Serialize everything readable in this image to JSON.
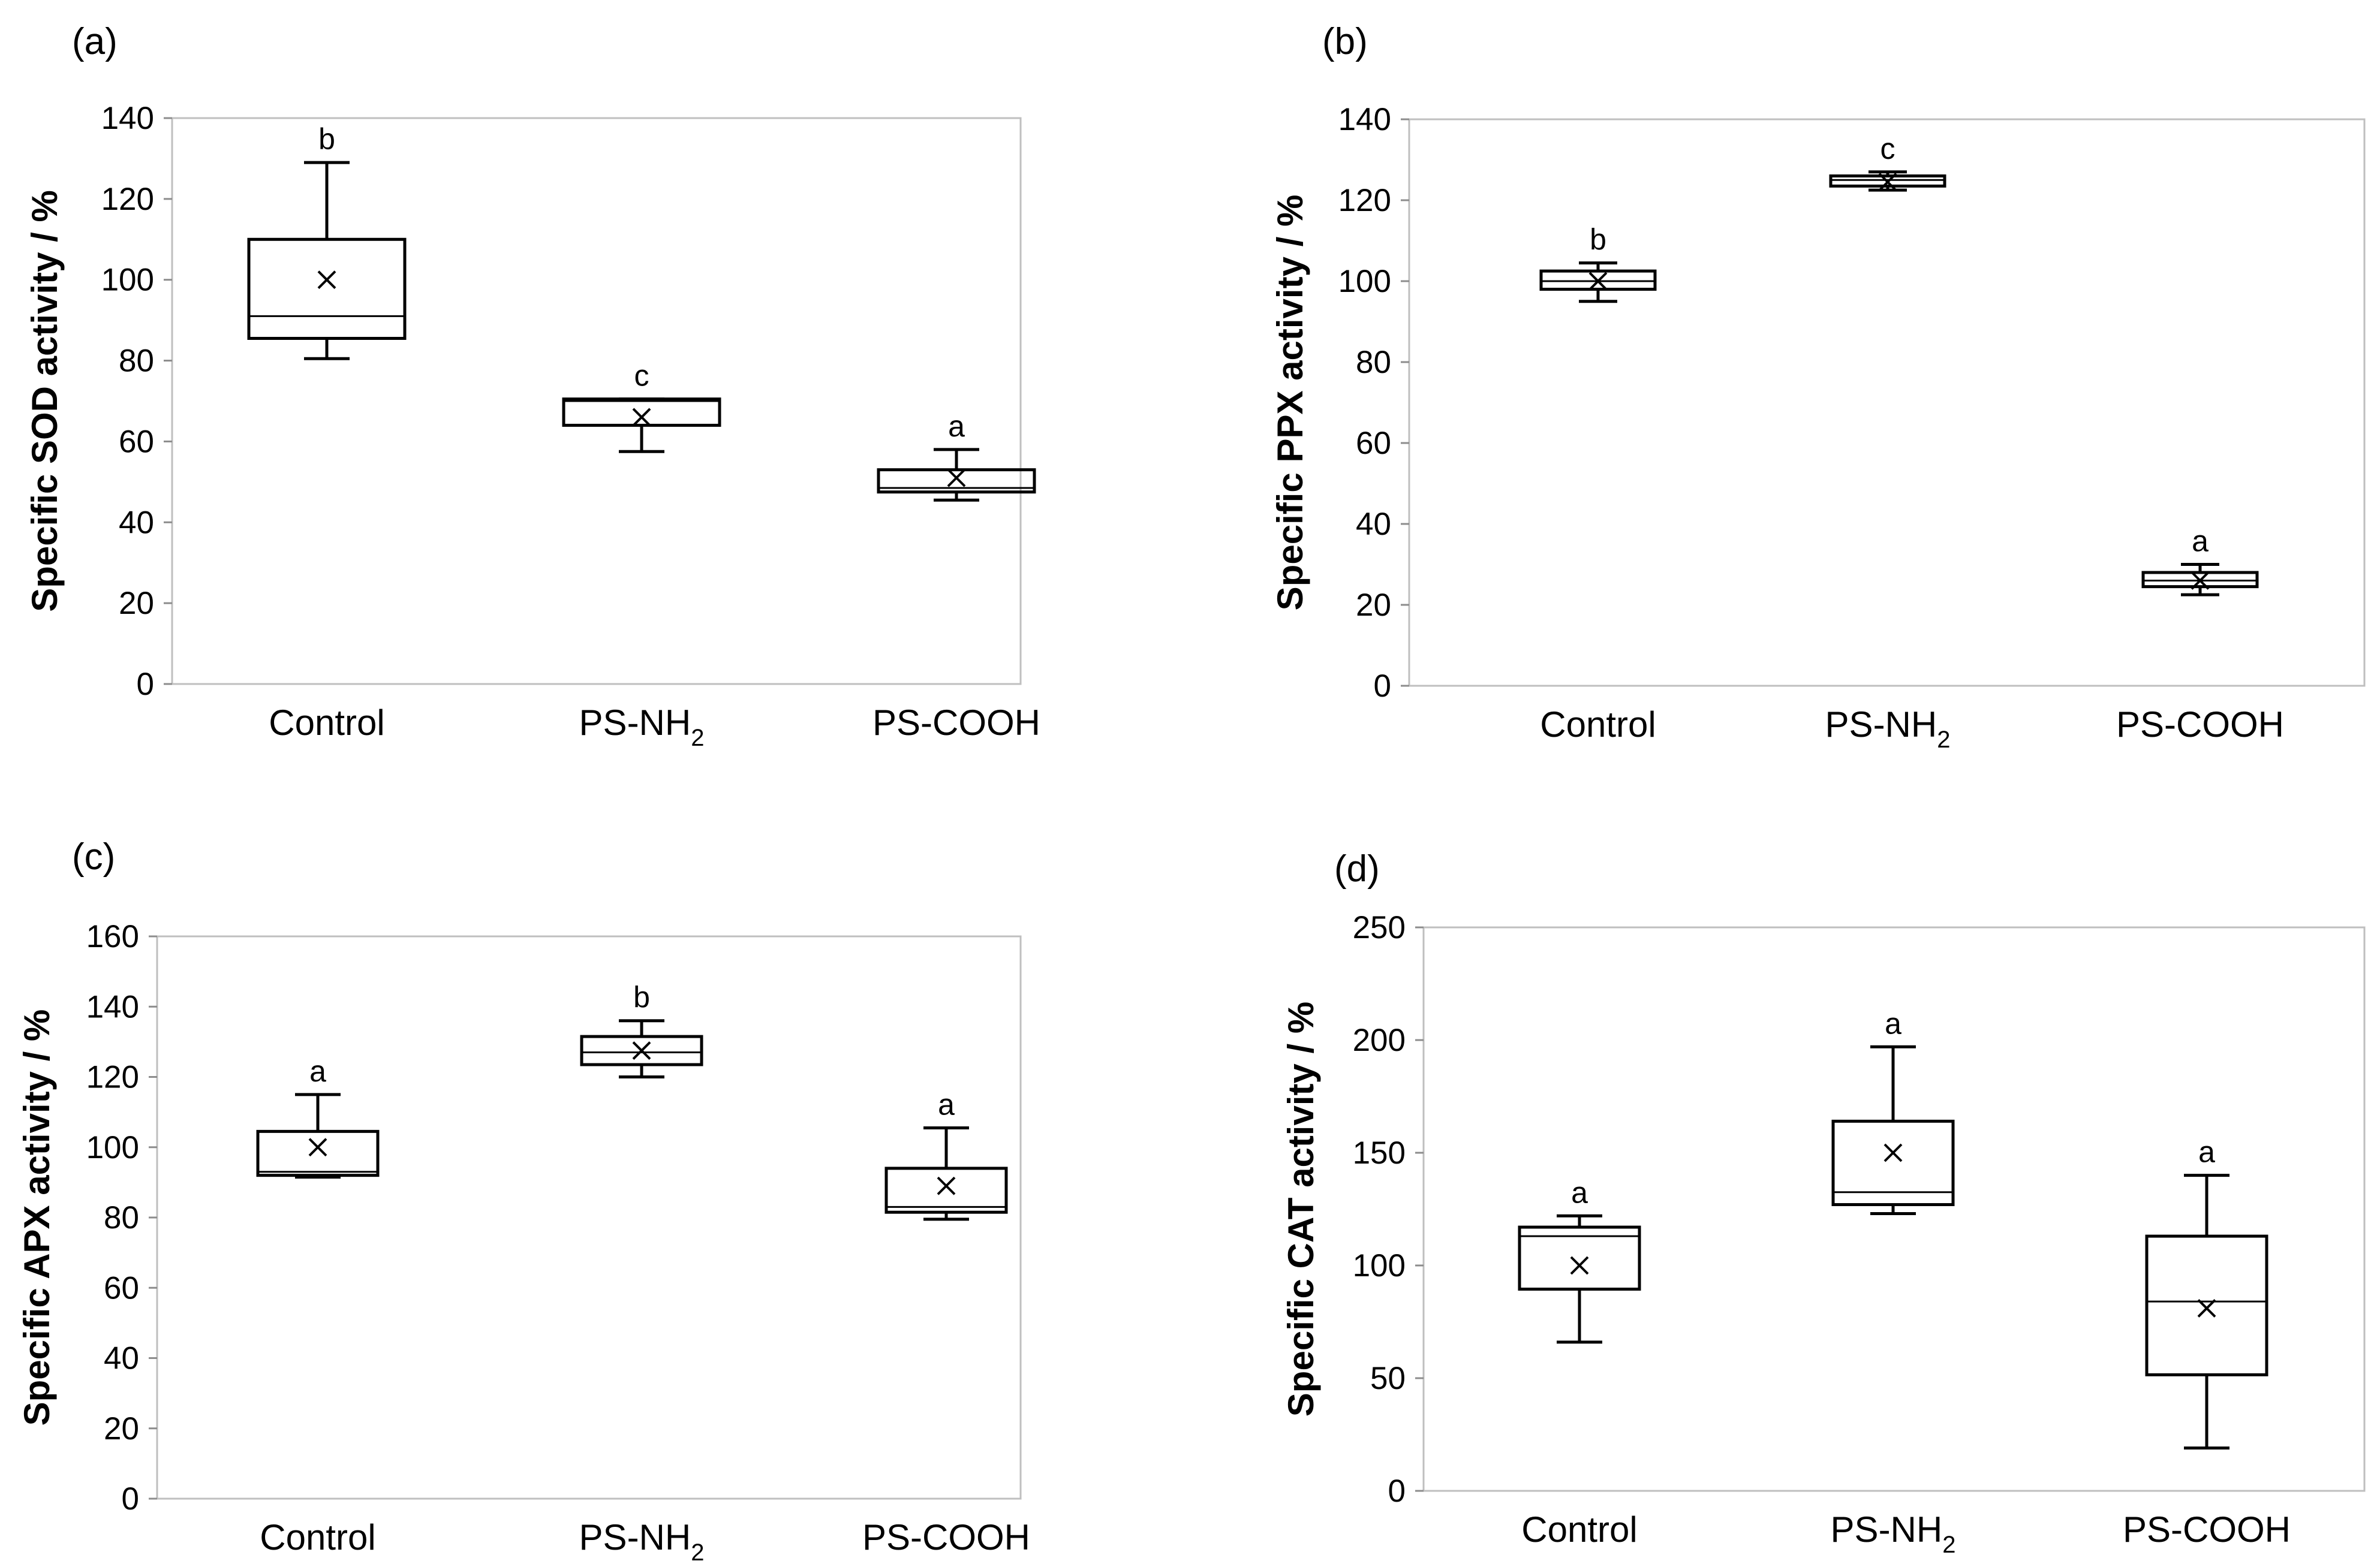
{
  "chart_data": [
    {
      "type": "box",
      "panel": "(a)",
      "ylabel": "Specific SOD activity / %",
      "ylim": [
        0,
        140
      ],
      "yticks": [
        0,
        20,
        40,
        60,
        80,
        100,
        120,
        140
      ],
      "categories": [
        {
          "main": "Control",
          "sub": ""
        },
        {
          "main": "PS-NH",
          "sub": "2"
        },
        {
          "main": "PS-COOH",
          "sub": ""
        }
      ],
      "boxes": [
        {
          "min": 80.5,
          "q1": 85.5,
          "median": 91,
          "q3": 110,
          "max": 129,
          "mean": 100,
          "letter": "b"
        },
        {
          "min": 57.5,
          "q1": 64,
          "median": 70,
          "q3": 70.5,
          "max": 70.5,
          "mean": 66,
          "letter": "c"
        },
        {
          "min": 45.5,
          "q1": 47.5,
          "median": 48.5,
          "q3": 53,
          "max": 58,
          "mean": 51,
          "letter": "a"
        }
      ]
    },
    {
      "type": "box",
      "panel": "(b)",
      "ylabel": "Specific PPX activity / %",
      "ylim": [
        0,
        140
      ],
      "yticks": [
        0,
        20,
        40,
        60,
        80,
        100,
        120,
        140
      ],
      "categories": [
        {
          "main": "Control",
          "sub": ""
        },
        {
          "main": "PS-NH",
          "sub": "2"
        },
        {
          "main": "PS-COOH",
          "sub": ""
        }
      ],
      "boxes": [
        {
          "min": 95,
          "q1": 98,
          "median": 100,
          "q3": 102.5,
          "max": 104.5,
          "mean": 100,
          "letter": "b"
        },
        {
          "min": 122.5,
          "q1": 123.5,
          "median": 125,
          "q3": 126,
          "max": 127,
          "mean": 124.5,
          "letter": "c"
        },
        {
          "min": 22.5,
          "q1": 24.5,
          "median": 26,
          "q3": 28,
          "max": 30,
          "mean": 26,
          "letter": "a"
        }
      ]
    },
    {
      "type": "box",
      "panel": "(c)",
      "ylabel": "Specific APX activity / %",
      "ylim": [
        0,
        160
      ],
      "yticks": [
        0,
        20,
        40,
        60,
        80,
        100,
        120,
        140,
        160
      ],
      "categories": [
        {
          "main": "Control",
          "sub": ""
        },
        {
          "main": "PS-NH",
          "sub": "2"
        },
        {
          "main": "PS-COOH",
          "sub": ""
        }
      ],
      "boxes": [
        {
          "min": 91.5,
          "q1": 92,
          "median": 93,
          "q3": 104.5,
          "max": 115,
          "mean": 100,
          "letter": "a"
        },
        {
          "min": 120,
          "q1": 123.5,
          "median": 127,
          "q3": 131.5,
          "max": 136,
          "mean": 127.5,
          "letter": "b"
        },
        {
          "min": 79.5,
          "q1": 81.5,
          "median": 83,
          "q3": 94,
          "max": 105.5,
          "mean": 89,
          "letter": "a"
        }
      ]
    },
    {
      "type": "box",
      "panel": "(d)",
      "ylabel": "Specific CAT activity / %",
      "ylim": [
        0,
        250
      ],
      "yticks": [
        0,
        50,
        100,
        150,
        200,
        250
      ],
      "categories": [
        {
          "main": "Control",
          "sub": ""
        },
        {
          "main": "PS-NH",
          "sub": "2"
        },
        {
          "main": "PS-COOH",
          "sub": ""
        }
      ],
      "boxes": [
        {
          "min": 66,
          "q1": 89.5,
          "median": 113,
          "q3": 117,
          "max": 122,
          "mean": 100,
          "letter": "a"
        },
        {
          "min": 123,
          "q1": 127,
          "median": 132.5,
          "q3": 164,
          "max": 197,
          "mean": 150,
          "letter": "a"
        },
        {
          "min": 19,
          "q1": 51.5,
          "median": 84,
          "q3": 113,
          "max": 140,
          "mean": 81,
          "letter": "a"
        }
      ]
    }
  ]
}
